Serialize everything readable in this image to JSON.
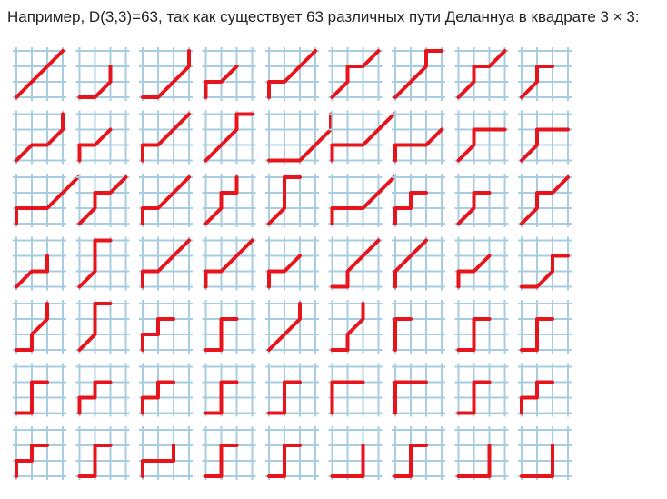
{
  "caption": "Например, D(3,3)=63, так как существует 63 различных пути Деланнуа в квадрате 3 × 3:",
  "colors": {
    "grid": "#a8cde0",
    "path": "#e8141c",
    "text": "#222222"
  },
  "grid_size": 3,
  "paths": [
    "DDD",
    "EDN",
    "EDDN",
    "NED",
    "NEDD",
    "DNED",
    "DDNE",
    "DNED",
    "DNE",
    "DEDN",
    "NED",
    "NEDD",
    "DDNE",
    "EEDDN",
    "NEEDD",
    "NEED",
    "DNEE",
    "DNEE",
    "NEEDD",
    "DNED",
    "NEDD",
    "DNEN",
    "DNNE",
    "NEEDD",
    "NENE",
    "DNE",
    "DNED",
    "DEN",
    "DNNE",
    "NEDD",
    "NEDD",
    "NED",
    "ENDD",
    "NDD",
    "NED",
    "EDNE",
    "ENDN",
    "DNNE",
    "NENE",
    "ENNE",
    "DDN",
    "ENDN",
    "NNE",
    "ENNE",
    "ENNE",
    "ENNE",
    "NENE",
    "NENE",
    "ENNE",
    "ENNE",
    "NNEE",
    "NNEE",
    "ENNE",
    "NENE",
    "NENE",
    "ENNE",
    "NEEN",
    "ENNE",
    "ENNE",
    "EENN",
    "ENNE",
    "EENN",
    "EENN"
  ]
}
